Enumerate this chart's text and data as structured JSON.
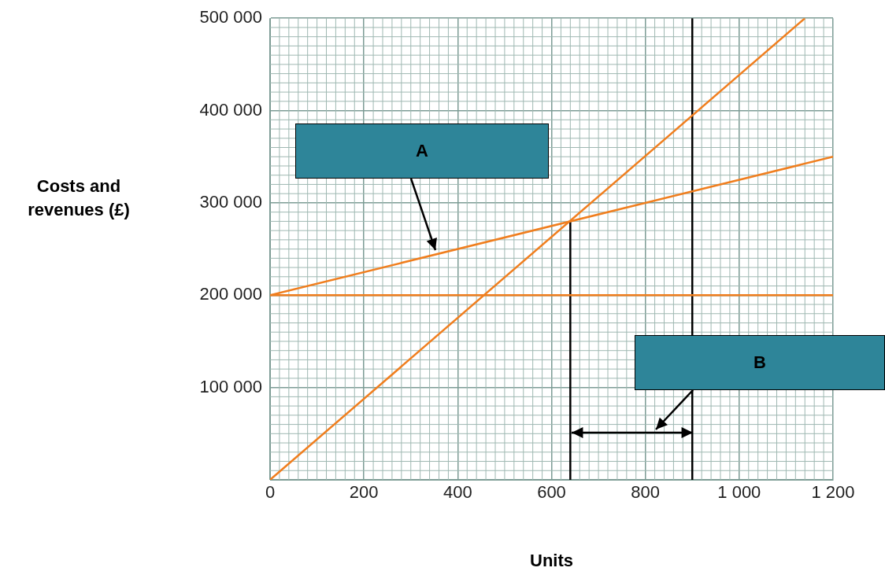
{
  "chart_data": {
    "type": "line",
    "xlabel": "Units",
    "ylabel": "Costs and revenues (£)",
    "xlim": [
      0,
      1200
    ],
    "xticks": [
      {
        "value": 0,
        "label": "0"
      },
      200,
      400,
      600,
      800,
      {
        "value": 1000,
        "label": "1 000"
      },
      {
        "value": 1200,
        "label": "1 200"
      }
    ],
    "ylim": [
      0,
      500000
    ],
    "yticks": [
      {
        "value": 0,
        "label": null
      },
      {
        "value": 100000,
        "label": "100 000"
      },
      {
        "value": 200000,
        "label": "200 000"
      },
      {
        "value": 300000,
        "label": "300 000"
      },
      {
        "value": 400000,
        "label": "400 000"
      },
      {
        "value": 500000,
        "label": "500 000"
      }
    ],
    "series": [
      {
        "color": "#f07e1e",
        "x": [
          0,
          1200
        ],
        "values": [
          200000,
          200000
        ]
      },
      {
        "color": "#f07e1e",
        "x": [
          0,
          1200
        ],
        "values": [
          200000,
          350000
        ]
      },
      {
        "color": "#f07e1e",
        "x": [
          0,
          1140
        ],
        "values": [
          0,
          500000
        ]
      },
      {
        "color": "#000000",
        "x": [
          640,
          640
        ],
        "values": [
          0,
          280000
        ]
      }
    ],
    "ref_lines": [
      {
        "axis": "x",
        "value": 900,
        "color": "#000000"
      }
    ],
    "annotations": [
      "A",
      "B"
    ],
    "grid": true,
    "marker": "none",
    "line_style": "solid"
  }
}
